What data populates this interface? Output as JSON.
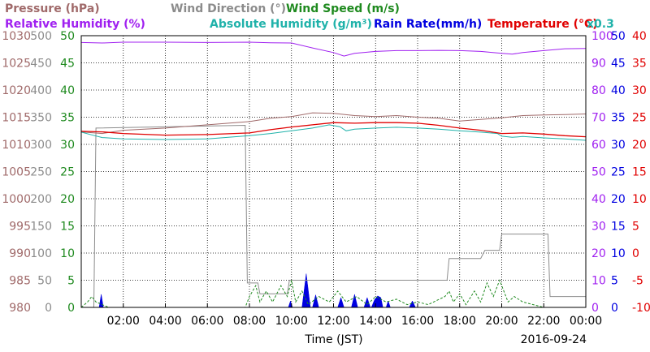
{
  "header": {
    "line1": [
      {
        "text": "Pressure (hPa)",
        "color": "#a06a6a"
      },
      {
        "text": "Wind Direction (°)",
        "color": "#8c8c8c"
      },
      {
        "text": "Wind Speed (m/s)",
        "color": "#1f8a1f"
      }
    ],
    "line2": [
      {
        "text": "Relative Humidity (%)",
        "color": "#a020f0"
      },
      {
        "text": "Absolute Humidity (g/m³)",
        "color": "#20b2aa"
      },
      {
        "text": "Rain Rate(mm/h)",
        "color": "#0000e0"
      },
      {
        "text": "Temperature (°C)",
        "color": "#e00000"
      }
    ],
    "multiplier": {
      "text": "x0.3",
      "color": "#20b2aa"
    }
  },
  "chart_data": {
    "type": "line",
    "xlabel": "Time (JST)",
    "date": "2016-09-24",
    "x_ticks": [
      "02:00",
      "04:00",
      "06:00",
      "08:00",
      "10:00",
      "12:00",
      "14:00",
      "16:00",
      "18:00",
      "20:00",
      "22:00",
      "00:00"
    ],
    "x_range_hours": [
      0,
      24
    ],
    "grid": true,
    "axes": {
      "pressure": {
        "color": "#a06a6a",
        "range": [
          980,
          1030
        ],
        "ticks": [
          "980",
          "985",
          "990",
          "995",
          "1000",
          "1005",
          "1010",
          "1015",
          "1020",
          "1025",
          "1030"
        ]
      },
      "wind_direction": {
        "color": "#8c8c8c",
        "range": [
          0,
          500
        ],
        "ticks": [
          "0",
          "50",
          "100",
          "150",
          "200",
          "250",
          "300",
          "350",
          "400",
          "450",
          "500"
        ]
      },
      "wind_speed": {
        "color": "#1f8a1f",
        "range": [
          0,
          50
        ],
        "ticks": [
          "0",
          "5",
          "10",
          "15",
          "20",
          "25",
          "30",
          "35",
          "40",
          "45",
          "50"
        ]
      },
      "relative_humidity": {
        "color": "#a020f0",
        "range": [
          0,
          100
        ],
        "ticks": [
          "0",
          "10",
          "20",
          "30",
          "40",
          "50",
          "60",
          "70",
          "80",
          "90",
          "100"
        ]
      },
      "rain_rate": {
        "color": "#0000e0",
        "range": [
          0,
          50
        ],
        "ticks": [
          "0",
          "5",
          "10",
          "15",
          "20",
          "25",
          "30",
          "35",
          "40",
          "45",
          "50"
        ]
      },
      "temperature": {
        "color": "#e00000",
        "range": [
          -10,
          40
        ],
        "ticks": [
          "-10",
          "-5",
          "0",
          "5",
          "10",
          "15",
          "20",
          "25",
          "30",
          "35",
          "40"
        ]
      }
    },
    "series": [
      {
        "name": "Pressure (hPa)",
        "axis": "pressure",
        "color": "#a06a6a",
        "points": [
          [
            0,
            1012.3
          ],
          [
            1,
            1012.0
          ],
          [
            2,
            1012.6
          ],
          [
            4,
            1013.0
          ],
          [
            6,
            1013.6
          ],
          [
            8,
            1014.2
          ],
          [
            9,
            1014.8
          ],
          [
            10,
            1015.1
          ],
          [
            11,
            1015.8
          ],
          [
            12,
            1015.7
          ],
          [
            13,
            1015.3
          ],
          [
            14,
            1015.1
          ],
          [
            15,
            1015.3
          ],
          [
            16,
            1015.0
          ],
          [
            17,
            1014.8
          ],
          [
            18,
            1014.3
          ],
          [
            19,
            1014.6
          ],
          [
            20,
            1014.9
          ],
          [
            21,
            1015.3
          ],
          [
            22,
            1015.4
          ],
          [
            23,
            1015.5
          ],
          [
            24,
            1015.6
          ]
        ]
      },
      {
        "name": "Wind Direction (°)",
        "axis": "wind_direction",
        "color": "#8c8c8c",
        "step": true,
        "points": [
          [
            0,
            0
          ],
          [
            0.6,
            0
          ],
          [
            0.7,
            330
          ],
          [
            7.8,
            335
          ],
          [
            7.9,
            45
          ],
          [
            8.4,
            45
          ],
          [
            8.5,
            25
          ],
          [
            9.8,
            25
          ],
          [
            9.9,
            50
          ],
          [
            15,
            50
          ],
          [
            17.4,
            50
          ],
          [
            17.5,
            90
          ],
          [
            19,
            90
          ],
          [
            19.2,
            105
          ],
          [
            19.9,
            105
          ],
          [
            20,
            135
          ],
          [
            22.2,
            135
          ],
          [
            22.3,
            20
          ],
          [
            24,
            20
          ]
        ]
      },
      {
        "name": "Wind Speed (m/s)",
        "axis": "wind_speed",
        "color": "#1f8a1f",
        "dashed": true,
        "points": [
          [
            0,
            0
          ],
          [
            0.3,
            1
          ],
          [
            0.5,
            2
          ],
          [
            0.7,
            1
          ],
          [
            1,
            0.5
          ],
          [
            1.3,
            0
          ],
          [
            7.8,
            0
          ],
          [
            8.0,
            2
          ],
          [
            8.3,
            4
          ],
          [
            8.5,
            1
          ],
          [
            8.8,
            3
          ],
          [
            9.1,
            1
          ],
          [
            9.5,
            4
          ],
          [
            9.8,
            2
          ],
          [
            10,
            5
          ],
          [
            10.2,
            1
          ],
          [
            10.5,
            3
          ],
          [
            10.8,
            0.5
          ],
          [
            11.3,
            2
          ],
          [
            11.8,
            1
          ],
          [
            12.2,
            3
          ],
          [
            12.6,
            1
          ],
          [
            13.1,
            2
          ],
          [
            13.6,
            0.5
          ],
          [
            14,
            2
          ],
          [
            14.5,
            1
          ],
          [
            15,
            1.5
          ],
          [
            15.5,
            0.5
          ],
          [
            16,
            1
          ],
          [
            16.5,
            0.5
          ],
          [
            17.3,
            2
          ],
          [
            17.5,
            3
          ],
          [
            17.7,
            1
          ],
          [
            18,
            2.5
          ],
          [
            18.3,
            0.5
          ],
          [
            18.7,
            3
          ],
          [
            19.0,
            1
          ],
          [
            19.3,
            4.5
          ],
          [
            19.6,
            2
          ],
          [
            19.9,
            5
          ],
          [
            20.1,
            3
          ],
          [
            20.3,
            1
          ],
          [
            20.6,
            2
          ],
          [
            21,
            1
          ],
          [
            21.5,
            0.5
          ],
          [
            22,
            0
          ],
          [
            24,
            0
          ]
        ]
      },
      {
        "name": "Relative Humidity (%)",
        "axis": "relative_humidity",
        "color": "#a020f0",
        "points": [
          [
            0,
            97.5
          ],
          [
            1,
            97.3
          ],
          [
            2,
            97.6
          ],
          [
            4,
            97.6
          ],
          [
            6,
            97.5
          ],
          [
            8,
            97.6
          ],
          [
            9,
            97.4
          ],
          [
            10,
            97.3
          ],
          [
            11,
            95.5
          ],
          [
            12,
            93.8
          ],
          [
            12.5,
            92.5
          ],
          [
            13,
            93.5
          ],
          [
            14,
            94.2
          ],
          [
            15,
            94.5
          ],
          [
            16,
            94.5
          ],
          [
            17,
            94.6
          ],
          [
            18,
            94.5
          ],
          [
            19,
            94.2
          ],
          [
            20,
            93.5
          ],
          [
            20.5,
            93.2
          ],
          [
            21,
            93.8
          ],
          [
            22,
            94.5
          ],
          [
            23,
            95.2
          ],
          [
            24,
            95.3
          ]
        ]
      },
      {
        "name": "Absolute Humidity (g/m³)",
        "axis": "relative_humidity",
        "color": "#20b2aa",
        "points": [
          [
            0,
            64.5
          ],
          [
            0.5,
            63.5
          ],
          [
            1,
            62.5
          ],
          [
            2,
            62.0
          ],
          [
            4,
            61.8
          ],
          [
            6,
            62.0
          ],
          [
            7,
            62.6
          ],
          [
            8,
            63.2
          ],
          [
            9,
            64.0
          ],
          [
            10,
            65.0
          ],
          [
            11,
            66.0
          ],
          [
            11.8,
            67.2
          ],
          [
            12.3,
            66.5
          ],
          [
            12.6,
            65.0
          ],
          [
            13,
            65.6
          ],
          [
            14,
            66.0
          ],
          [
            15,
            66.3
          ],
          [
            16,
            66.0
          ],
          [
            17,
            65.6
          ],
          [
            18,
            65.0
          ],
          [
            19,
            64.5
          ],
          [
            19.8,
            64.0
          ],
          [
            20,
            63.0
          ],
          [
            20.5,
            62.6
          ],
          [
            21,
            62.9
          ],
          [
            22,
            62.4
          ],
          [
            23,
            62.0
          ],
          [
            24,
            61.5
          ]
        ]
      },
      {
        "name": "Temperature (°C)",
        "axis": "temperature",
        "color": "#e00000",
        "points": [
          [
            0,
            22.4
          ],
          [
            1,
            22.3
          ],
          [
            2,
            22.0
          ],
          [
            4,
            21.7
          ],
          [
            6,
            21.8
          ],
          [
            8,
            22.1
          ],
          [
            9,
            22.7
          ],
          [
            10,
            23.2
          ],
          [
            11,
            23.6
          ],
          [
            12,
            24.0
          ],
          [
            13,
            23.9
          ],
          [
            14,
            24.0
          ],
          [
            15,
            24.0
          ],
          [
            16,
            23.9
          ],
          [
            17,
            23.5
          ],
          [
            18,
            23.0
          ],
          [
            19,
            22.6
          ],
          [
            20,
            22.0
          ],
          [
            21,
            22.1
          ],
          [
            22,
            21.9
          ],
          [
            23,
            21.6
          ],
          [
            24,
            21.4
          ]
        ]
      },
      {
        "name": "Rain Rate(mm/h)",
        "axis": "rain_rate",
        "color": "#0000e0",
        "type": "area",
        "points": [
          [
            0.85,
            0
          ],
          [
            0.95,
            2.4
          ],
          [
            1.05,
            0
          ],
          [
            9.85,
            0
          ],
          [
            9.95,
            1.2
          ],
          [
            10.05,
            0
          ],
          [
            10.5,
            0
          ],
          [
            10.7,
            6.2
          ],
          [
            10.9,
            0
          ],
          [
            11.0,
            0
          ],
          [
            11.15,
            2.3
          ],
          [
            11.3,
            0
          ],
          [
            12.2,
            0
          ],
          [
            12.35,
            1.8
          ],
          [
            12.5,
            0
          ],
          [
            12.85,
            0
          ],
          [
            13.0,
            2.4
          ],
          [
            13.15,
            0
          ],
          [
            13.45,
            0
          ],
          [
            13.6,
            1.8
          ],
          [
            13.75,
            0
          ],
          [
            13.8,
            0
          ],
          [
            13.95,
            1.4
          ],
          [
            14.1,
            2.1
          ],
          [
            14.25,
            1.8
          ],
          [
            14.35,
            0
          ],
          [
            14.5,
            0
          ],
          [
            14.6,
            1.2
          ],
          [
            14.7,
            0
          ],
          [
            15.6,
            0
          ],
          [
            15.75,
            1.2
          ],
          [
            15.9,
            0
          ]
        ]
      }
    ]
  }
}
